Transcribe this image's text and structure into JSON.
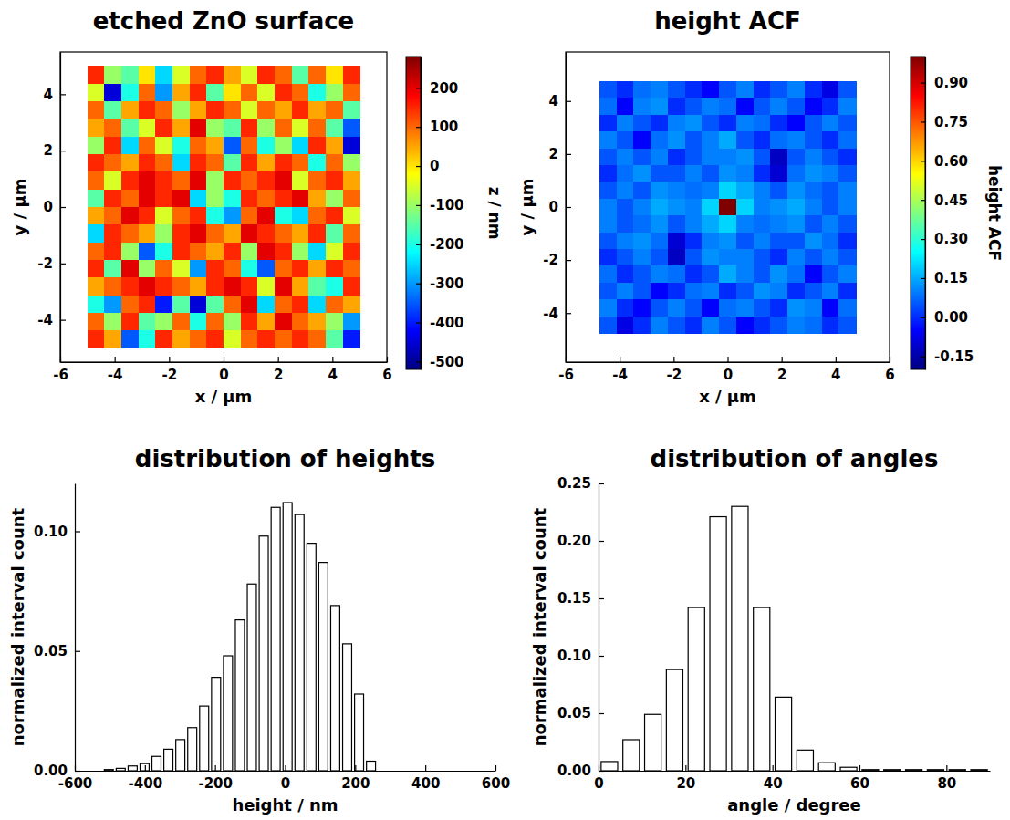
{
  "chart_data": [
    {
      "type": "heatmap",
      "title": "etched ZnO surface",
      "x_label": "x / µm",
      "y_label": "y / µm",
      "xlim": [
        -6,
        6
      ],
      "ylim": [
        -5.5,
        5.5
      ],
      "xticks": [
        -6,
        -4,
        -2,
        0,
        2,
        4,
        6
      ],
      "yticks": [
        -4,
        -2,
        0,
        2,
        4
      ],
      "x_extent": [
        -5,
        5
      ],
      "y_extent": [
        -5,
        5
      ],
      "cells": [
        [
          150,
          -100,
          -150,
          0,
          -250,
          -50,
          100,
          150,
          50,
          -50,
          150,
          100,
          -150,
          100,
          0,
          150
        ],
        [
          -50,
          -450,
          -200,
          100,
          -300,
          50,
          150,
          -150,
          0,
          100,
          -50,
          150,
          100,
          -200,
          -100,
          100
        ],
        [
          100,
          -150,
          50,
          150,
          100,
          -100,
          50,
          150,
          100,
          -50,
          100,
          50,
          150,
          50,
          100,
          -150
        ],
        [
          50,
          100,
          -150,
          -50,
          150,
          50,
          200,
          -100,
          -150,
          150,
          -100,
          100,
          -50,
          100,
          -150,
          -350
        ],
        [
          -100,
          150,
          -250,
          100,
          -50,
          -200,
          100,
          50,
          -350,
          100,
          -200,
          -100,
          -250,
          150,
          50,
          -450
        ],
        [
          150,
          100,
          50,
          150,
          100,
          -250,
          150,
          100,
          -150,
          150,
          50,
          150,
          100,
          -200,
          100,
          -100
        ],
        [
          100,
          -50,
          150,
          200,
          150,
          100,
          200,
          -100,
          150,
          100,
          150,
          200,
          -50,
          100,
          150,
          50
        ],
        [
          -150,
          150,
          100,
          200,
          150,
          200,
          -250,
          -100,
          -200,
          150,
          100,
          150,
          200,
          50,
          -100,
          100
        ],
        [
          50,
          100,
          200,
          150,
          -50,
          100,
          150,
          -200,
          -300,
          100,
          200,
          -200,
          -250,
          100,
          150,
          -50
        ],
        [
          -250,
          150,
          100,
          50,
          -100,
          150,
          200,
          100,
          50,
          200,
          150,
          100,
          50,
          150,
          -150,
          100
        ],
        [
          100,
          150,
          -100,
          -350,
          -200,
          150,
          100,
          50,
          150,
          -100,
          200,
          150,
          -100,
          -250,
          -50,
          150
        ],
        [
          150,
          -150,
          200,
          -100,
          100,
          -50,
          -300,
          150,
          100,
          -200,
          -350,
          100,
          150,
          50,
          150,
          100
        ],
        [
          50,
          100,
          150,
          200,
          150,
          100,
          50,
          150,
          200,
          150,
          -50,
          200,
          50,
          -150,
          -200,
          150
        ],
        [
          -200,
          -300,
          100,
          150,
          -400,
          -150,
          -450,
          -150,
          100,
          200,
          -250,
          100,
          150,
          -250,
          100,
          50
        ],
        [
          100,
          -100,
          150,
          -150,
          -100,
          100,
          -200,
          100,
          -100,
          150,
          50,
          200,
          100,
          50,
          -100,
          -300
        ],
        [
          150,
          50,
          -350,
          -200,
          150,
          50,
          100,
          150,
          -50,
          100,
          150,
          100,
          150,
          100,
          -150,
          -400
        ]
      ],
      "colorbar": {
        "label": "z / nm",
        "range": [
          -520,
          280
        ],
        "ticks": [
          -500,
          -400,
          -300,
          -200,
          -100,
          0,
          100,
          200
        ]
      }
    },
    {
      "type": "heatmap",
      "title": "height ACF",
      "x_label": "x / µm",
      "y_label": "y / µm",
      "xlim": [
        -6,
        6
      ],
      "ylim": [
        -5.85,
        5.85
      ],
      "xticks": [
        -6,
        -4,
        -2,
        0,
        2,
        4,
        6
      ],
      "yticks": [
        -4,
        -2,
        0,
        2,
        4
      ],
      "x_extent": [
        -4.75,
        4.75
      ],
      "y_extent": [
        -4.75,
        4.75
      ],
      "cells": [
        [
          0.05,
          0.0,
          0.08,
          0.1,
          0.05,
          0.0,
          -0.05,
          0.05,
          0.1,
          0.0,
          0.05,
          0.1,
          0.0,
          -0.08,
          0.05
        ],
        [
          0.08,
          -0.05,
          0.1,
          0.12,
          0.0,
          0.05,
          0.1,
          0.08,
          -0.05,
          0.05,
          0.1,
          0.05,
          -0.05,
          0.0,
          0.1
        ],
        [
          0.0,
          0.1,
          0.05,
          0.0,
          0.1,
          0.12,
          0.05,
          0.0,
          0.1,
          0.08,
          0.0,
          -0.05,
          0.05,
          0.1,
          0.05
        ],
        [
          0.1,
          0.05,
          -0.05,
          0.08,
          0.12,
          0.05,
          0.1,
          0.15,
          0.05,
          0.0,
          0.08,
          0.1,
          0.05,
          0.0,
          0.08
        ],
        [
          0.05,
          0.1,
          0.05,
          0.1,
          0.0,
          0.05,
          0.1,
          0.1,
          0.12,
          0.05,
          -0.12,
          0.05,
          0.1,
          0.05,
          0.0
        ],
        [
          0.0,
          0.08,
          0.12,
          0.05,
          0.05,
          0.1,
          0.05,
          0.12,
          0.1,
          0.0,
          -0.1,
          0.08,
          0.12,
          0.1,
          0.05
        ],
        [
          0.05,
          0.1,
          0.05,
          0.12,
          0.1,
          0.08,
          0.1,
          0.2,
          0.15,
          0.1,
          0.05,
          0.12,
          0.08,
          0.05,
          0.1
        ],
        [
          0.1,
          0.05,
          0.1,
          0.15,
          0.12,
          0.1,
          0.2,
          1.0,
          0.2,
          0.1,
          0.12,
          0.15,
          0.1,
          0.05,
          0.1
        ],
        [
          0.1,
          0.05,
          0.08,
          0.12,
          0.05,
          0.1,
          0.15,
          0.2,
          0.1,
          0.08,
          0.1,
          0.12,
          0.05,
          0.1,
          0.05
        ],
        [
          0.05,
          0.1,
          0.12,
          0.08,
          -0.1,
          0.0,
          0.1,
          0.12,
          0.05,
          0.1,
          0.05,
          0.05,
          0.12,
          0.08,
          0.0
        ],
        [
          0.0,
          0.05,
          0.1,
          0.05,
          -0.12,
          0.05,
          0.12,
          0.1,
          0.1,
          0.05,
          0.0,
          0.1,
          0.05,
          0.1,
          0.05
        ],
        [
          0.08,
          0.0,
          0.05,
          0.1,
          0.08,
          0.0,
          0.05,
          0.15,
          0.1,
          0.05,
          0.12,
          0.08,
          -0.05,
          0.05,
          0.1
        ],
        [
          0.05,
          0.1,
          0.05,
          -0.05,
          0.0,
          0.08,
          0.1,
          0.0,
          0.05,
          0.12,
          0.1,
          0.0,
          0.05,
          0.1,
          0.0
        ],
        [
          0.1,
          0.0,
          -0.05,
          0.05,
          0.1,
          0.05,
          -0.05,
          0.08,
          0.1,
          0.05,
          0.0,
          0.12,
          0.1,
          -0.05,
          0.08
        ],
        [
          0.05,
          -0.08,
          0.0,
          0.1,
          0.05,
          0.0,
          0.1,
          0.05,
          -0.05,
          0.0,
          0.05,
          0.1,
          0.08,
          0.0,
          0.05
        ]
      ],
      "colorbar": {
        "label": "height ACF",
        "range": [
          -0.2,
          1.0
        ],
        "ticks": [
          -0.15,
          {
            "value": 0,
            "label": "0.00"
          },
          0.15,
          {
            "value": 0.3,
            "label": "0.30"
          },
          0.45,
          {
            "value": 0.6,
            "label": "0.60"
          },
          0.75,
          {
            "value": 0.9,
            "label": "0.90"
          }
        ]
      }
    },
    {
      "type": "histogram",
      "title": "distribution of heights",
      "x_label": "height / nm",
      "y_label": "normalized interval count",
      "bins": [
        -520,
        -486,
        -452,
        -418,
        -384,
        -350,
        -316,
        -282,
        -248,
        -214,
        -180,
        -146,
        -112,
        -78,
        -44,
        -10,
        24,
        58,
        92,
        126,
        160,
        194,
        228,
        262
      ],
      "values": [
        0.0005,
        0.001,
        0.002,
        0.003,
        0.006,
        0.009,
        0.013,
        0.018,
        0.027,
        0.039,
        0.048,
        0.063,
        0.078,
        0.098,
        0.11,
        0.112,
        0.107,
        0.095,
        0.087,
        0.069,
        0.053,
        0.032,
        0.004
      ],
      "color": "#ffffff",
      "xlim": [
        -600,
        600
      ],
      "xticks": [
        -600,
        -400,
        -200,
        0,
        200,
        400,
        600
      ],
      "ylim": [
        0,
        0.12
      ],
      "yticks": [
        {
          "value": 0,
          "label": "0.00"
        },
        0.05,
        {
          "value": 0.1,
          "label": "0.10"
        }
      ]
    },
    {
      "type": "histogram",
      "title": "distribution of angles",
      "x_label": "angle / degree",
      "y_label": "normalized interval count",
      "bins": [
        0,
        5,
        10,
        15,
        20,
        25,
        30,
        35,
        40,
        45,
        50,
        55,
        60,
        65,
        70,
        75,
        80,
        85,
        90
      ],
      "values": [
        0.008,
        0.027,
        0.049,
        0.088,
        0.142,
        0.221,
        0.23,
        0.142,
        0.064,
        0.018,
        0.007,
        0.003,
        0.001,
        0.001,
        0.001,
        0.001,
        0.001,
        0.001
      ],
      "color": "#ffffff",
      "xlim": [
        0,
        90
      ],
      "xticks": [
        0,
        20,
        40,
        60,
        80
      ],
      "ylim": [
        0,
        0.25
      ],
      "yticks": [
        {
          "value": 0,
          "label": "0.00"
        },
        0.05,
        {
          "value": 0.1,
          "label": "0.10"
        },
        0.15,
        {
          "value": 0.2,
          "label": "0.20"
        },
        0.25
      ]
    }
  ]
}
